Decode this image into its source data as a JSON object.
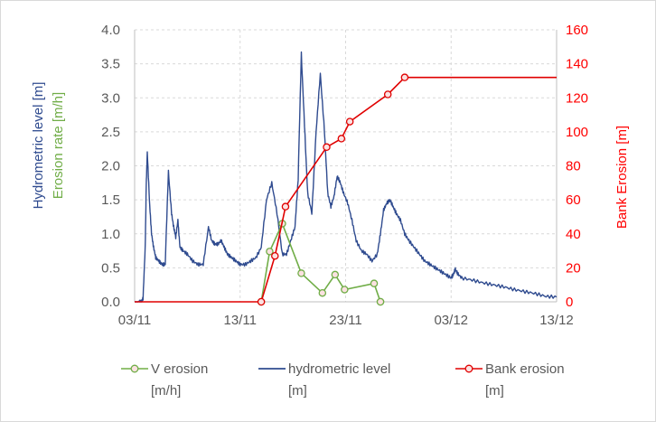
{
  "chart_data": {
    "type": "line",
    "x_axis": {
      "type": "date",
      "range": [
        "2020-11-03",
        "2020-12-13"
      ],
      "tick_labels": [
        "03/11",
        "13/11",
        "23/11",
        "03/12",
        "13/12"
      ],
      "grid": true
    },
    "y_left": {
      "labels": [
        "Hydrometric level [m]",
        "Erosion rate [m/h]"
      ],
      "label_colors": [
        "#2f4b8f",
        "#70ad47"
      ],
      "ylim": [
        0,
        4
      ],
      "tick_labels": [
        "0.0",
        "0.5",
        "1.0",
        "1.5",
        "2.0",
        "2.5",
        "3.0",
        "3.5",
        "4.0"
      ],
      "grid": true
    },
    "y_right": {
      "label": "Bank Erosion [m]",
      "color": "#ff0000",
      "ylim": [
        0,
        160
      ],
      "tick_labels": [
        "0",
        "20",
        "40",
        "60",
        "80",
        "100",
        "120",
        "140",
        "160"
      ]
    },
    "series": [
      {
        "name": "hydrometric level [m]",
        "axis": "left",
        "color": "#2f4b8f",
        "marker": "none",
        "x": [
          0,
          0.3,
          0.6,
          0.8,
          1.0,
          1.1,
          1.2,
          1.4,
          1.6,
          1.8,
          2.0,
          2.3,
          2.6,
          2.9,
          3.2,
          3.5,
          3.7,
          3.9,
          4.1,
          4.3,
          4.6,
          5.0,
          5.5,
          6.0,
          6.5,
          7.0,
          7.3,
          7.6,
          7.9,
          8.2,
          8.5,
          8.8,
          9.2,
          9.6,
          10.0,
          10.5,
          11.0,
          11.5,
          12.0,
          12.5,
          13.0,
          13.5,
          14.0,
          14.4,
          14.8,
          15.2,
          15.5,
          15.8,
          16.1,
          16.4,
          16.8,
          17.2,
          17.6,
          18.0,
          18.3,
          18.6,
          18.9,
          19.2,
          19.5,
          19.8,
          20.2,
          20.6,
          21.0,
          21.5,
          22.0,
          22.5,
          23.0,
          23.3,
          23.6,
          23.9,
          24.2,
          24.5,
          24.8,
          25.2,
          25.6,
          26.0,
          26.5,
          27.0,
          27.5,
          28.0,
          28.5,
          29.0,
          29.5,
          30.0,
          30.2,
          30.4,
          30.6,
          31.0,
          32.0,
          33.0,
          34.0,
          35.0,
          36.0,
          37.0,
          38.0,
          39.0,
          40.0
        ],
        "y": [
          0.0,
          0.0,
          0.0,
          0.05,
          0.8,
          1.7,
          2.2,
          1.5,
          1.0,
          0.8,
          0.65,
          0.6,
          0.55,
          0.55,
          1.92,
          1.3,
          1.1,
          0.95,
          1.2,
          0.8,
          0.75,
          0.7,
          0.6,
          0.55,
          0.55,
          1.1,
          0.9,
          0.85,
          0.85,
          0.9,
          0.8,
          0.7,
          0.65,
          0.6,
          0.55,
          0.55,
          0.6,
          0.65,
          0.8,
          1.5,
          1.75,
          1.3,
          0.7,
          0.7,
          0.9,
          1.1,
          1.8,
          3.65,
          2.6,
          1.6,
          1.3,
          2.5,
          3.35,
          2.5,
          1.6,
          1.4,
          1.55,
          1.85,
          1.75,
          1.6,
          1.45,
          1.2,
          0.9,
          0.75,
          0.7,
          0.6,
          0.7,
          1.0,
          1.35,
          1.45,
          1.5,
          1.4,
          1.3,
          1.2,
          1.0,
          0.9,
          0.8,
          0.7,
          0.6,
          0.55,
          0.5,
          0.45,
          0.4,
          0.35,
          0.4,
          0.48,
          0.42,
          0.35,
          0.32,
          0.28,
          0.25,
          0.22,
          0.18,
          0.15,
          0.12,
          0.08,
          0.07
        ]
      },
      {
        "name": "V erosion [m/h]",
        "axis": "left",
        "color": "#70ad47",
        "marker": "circle",
        "x": [
          12.0,
          12.8,
          14.0,
          15.8,
          17.8,
          19.0,
          19.9,
          22.7
        ],
        "y": [
          0.0,
          0.74,
          1.15,
          0.42,
          0.13,
          0.4,
          0.18,
          0.27
        ],
        "tail_x": [
          23.3
        ],
        "tail_y": [
          0.0
        ]
      },
      {
        "name": "Bank erosion [m]",
        "axis": "right",
        "color": "#e00000",
        "marker": "circle",
        "x": [
          0,
          12.0,
          13.3,
          14.3,
          18.2,
          19.6,
          20.4,
          24.0,
          25.6,
          40.0
        ],
        "y": [
          0,
          0,
          27,
          56,
          91,
          96,
          106,
          122,
          132,
          132
        ],
        "marker_indices": [
          1,
          2,
          3,
          4,
          5,
          6,
          7,
          8
        ]
      }
    ],
    "legend": {
      "placement": "bottom",
      "entries": [
        {
          "line1": "V erosion",
          "line2": "[m/h]",
          "color": "#70ad47",
          "marker": "circle"
        },
        {
          "line1": "hydrometric level",
          "line2": "[m]",
          "color": "#2f4b8f",
          "marker": "none"
        },
        {
          "line1": "Bank erosion",
          "line2": "[m]",
          "color": "#e00000",
          "marker": "circle"
        }
      ]
    }
  }
}
